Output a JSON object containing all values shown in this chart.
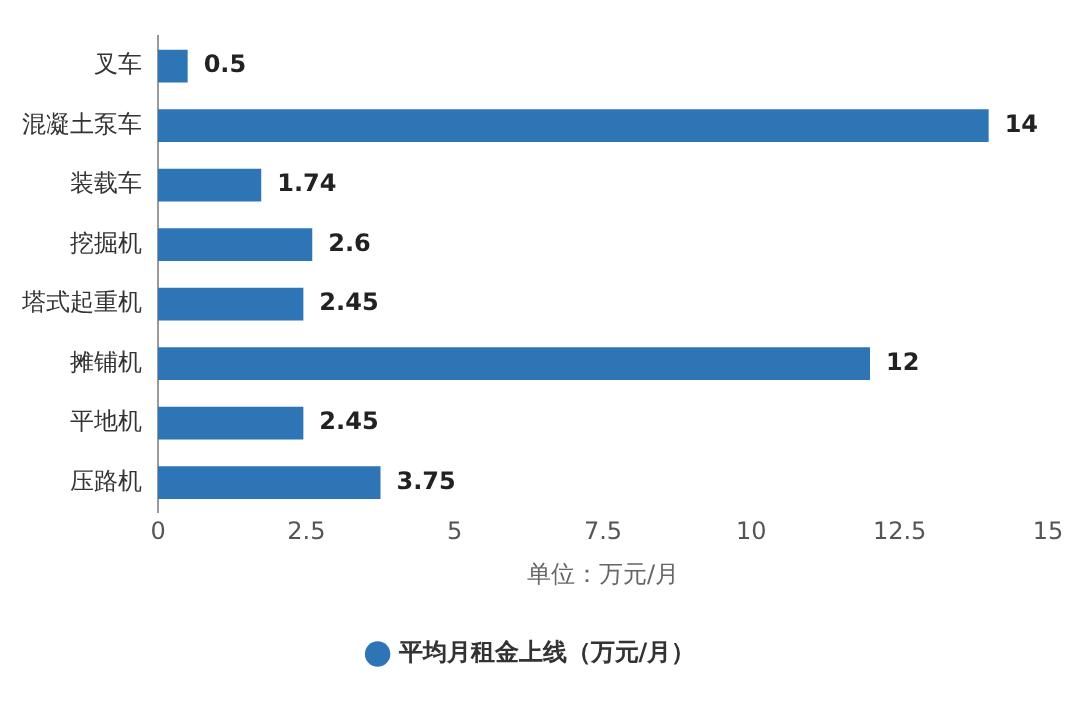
{
  "chart_data": {
    "type": "bar",
    "orientation": "horizontal",
    "categories": [
      "叉车",
      "混凝土泵车",
      "装载车",
      "挖掘机",
      "塔式起重机",
      "摊铺机",
      "平地机",
      "压路机"
    ],
    "series": [
      {
        "name": "平均月租金上线（万元/月）",
        "color": "#2e75b6",
        "values": [
          0.5,
          14,
          1.74,
          2.6,
          2.45,
          12,
          2.45,
          3.75
        ]
      }
    ],
    "xlim": [
      0,
      15
    ],
    "xticks": [
      0,
      2.5,
      5,
      7.5,
      10,
      12.5,
      15
    ],
    "xlabel": "单位：万元/月",
    "grid": false,
    "legend": "bottom",
    "data_labels": true
  }
}
